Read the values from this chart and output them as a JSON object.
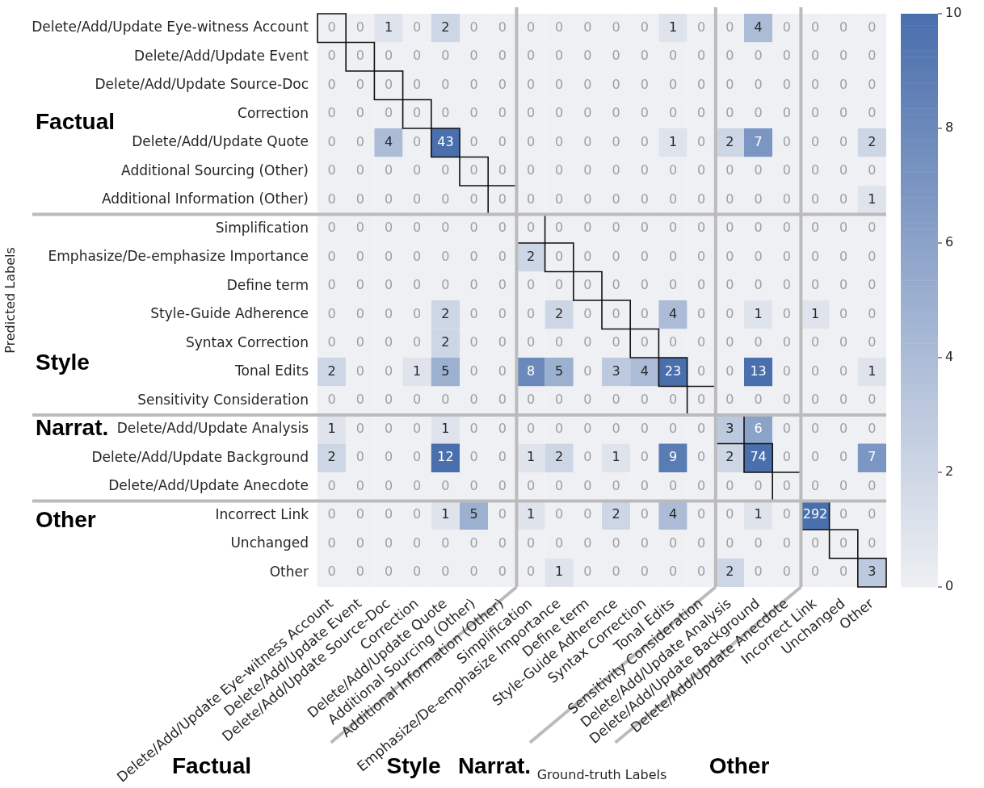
{
  "chart_data": {
    "type": "heatmap",
    "xlabel": "Ground-truth Labels",
    "ylabel": "Predicted Labels",
    "categories": [
      "Delete/Add/Update Eye-witness Account",
      "Delete/Add/Update Event",
      "Delete/Add/Update Source-Doc",
      "Correction",
      "Delete/Add/Update Quote",
      "Additional Sourcing (Other)",
      "Additional Information (Other)",
      "Simplification",
      "Emphasize/De-emphasize Importance",
      "Define term",
      "Style-Guide Adherence",
      "Syntax Correction",
      "Tonal Edits",
      "Sensitivity Consideration",
      "Delete/Add/Update Analysis",
      "Delete/Add/Update Background",
      "Delete/Add/Update Anecdote",
      "Incorrect Link",
      "Unchanged",
      "Other"
    ],
    "y_categories": [
      "Delete/Add/Update Eye-witness Account",
      "Delete/Add/Update Event",
      "Delete/Add/Update Source-Doc",
      "Correction",
      "Delete/Add/Update Quote",
      "Additional Sourcing (Other)",
      "Additional Information (Other)",
      "Simplification",
      "Emphasize/De-emphasize Importance",
      "Define term",
      "Style-Guide Adherence",
      "Syntax Correction",
      "Tonal Edits",
      "Sensitivity Consideration",
      "Delete/Add/Update Analysis",
      "Delete/Add/Update Background",
      "Delete/Add/Update Anecdote",
      "Incorrect Link",
      "Unchanged",
      "Other"
    ],
    "cells": [
      [
        0,
        0,
        1,
        0,
        2,
        0,
        0,
        0,
        0,
        0,
        0,
        0,
        1,
        0,
        0,
        4,
        0,
        0,
        0,
        0
      ],
      [
        0,
        0,
        0,
        0,
        0,
        0,
        0,
        0,
        0,
        0,
        0,
        0,
        0,
        0,
        0,
        0,
        0,
        0,
        0,
        0
      ],
      [
        0,
        0,
        0,
        0,
        0,
        0,
        0,
        0,
        0,
        0,
        0,
        0,
        0,
        0,
        0,
        0,
        0,
        0,
        0,
        0
      ],
      [
        0,
        0,
        0,
        0,
        0,
        0,
        0,
        0,
        0,
        0,
        0,
        0,
        0,
        0,
        0,
        0,
        0,
        0,
        0,
        0
      ],
      [
        0,
        0,
        4,
        0,
        43,
        0,
        0,
        0,
        0,
        0,
        0,
        0,
        1,
        0,
        2,
        7,
        0,
        0,
        0,
        2
      ],
      [
        0,
        0,
        0,
        0,
        0,
        0,
        0,
        0,
        0,
        0,
        0,
        0,
        0,
        0,
        0,
        0,
        0,
        0,
        0,
        0
      ],
      [
        0,
        0,
        0,
        0,
        0,
        0,
        0,
        0,
        0,
        0,
        0,
        0,
        0,
        0,
        0,
        0,
        0,
        0,
        0,
        1
      ],
      [
        0,
        0,
        0,
        0,
        0,
        0,
        0,
        0,
        0,
        0,
        0,
        0,
        0,
        0,
        0,
        0,
        0,
        0,
        0,
        0
      ],
      [
        0,
        0,
        0,
        0,
        0,
        0,
        0,
        2,
        0,
        0,
        0,
        0,
        0,
        0,
        0,
        0,
        0,
        0,
        0,
        0
      ],
      [
        0,
        0,
        0,
        0,
        0,
        0,
        0,
        0,
        0,
        0,
        0,
        0,
        0,
        0,
        0,
        0,
        0,
        0,
        0,
        0
      ],
      [
        0,
        0,
        0,
        0,
        2,
        0,
        0,
        0,
        2,
        0,
        0,
        0,
        4,
        0,
        0,
        1,
        0,
        1,
        0,
        0
      ],
      [
        0,
        0,
        0,
        0,
        2,
        0,
        0,
        0,
        0,
        0,
        0,
        0,
        0,
        0,
        0,
        0,
        0,
        0,
        0,
        0
      ],
      [
        2,
        0,
        0,
        1,
        5,
        0,
        0,
        8,
        5,
        0,
        3,
        4,
        23,
        0,
        0,
        13,
        0,
        0,
        0,
        1
      ],
      [
        0,
        0,
        0,
        0,
        0,
        0,
        0,
        0,
        0,
        0,
        0,
        0,
        0,
        0,
        0,
        0,
        0,
        0,
        0,
        0
      ],
      [
        1,
        0,
        0,
        0,
        1,
        0,
        0,
        0,
        0,
        0,
        0,
        0,
        0,
        0,
        3,
        6,
        0,
        0,
        0,
        0
      ],
      [
        2,
        0,
        0,
        0,
        12,
        0,
        0,
        1,
        2,
        0,
        1,
        0,
        9,
        0,
        2,
        74,
        0,
        0,
        0,
        7
      ],
      [
        0,
        0,
        0,
        0,
        0,
        0,
        0,
        0,
        0,
        0,
        0,
        0,
        0,
        0,
        0,
        0,
        0,
        0,
        0,
        0
      ],
      [
        0,
        0,
        0,
        0,
        1,
        5,
        0,
        1,
        0,
        0,
        2,
        0,
        4,
        0,
        0,
        1,
        0,
        292,
        0,
        0
      ],
      [
        0,
        0,
        0,
        0,
        0,
        0,
        0,
        0,
        0,
        0,
        0,
        0,
        0,
        0,
        0,
        0,
        0,
        0,
        0,
        0
      ],
      [
        0,
        0,
        0,
        0,
        0,
        0,
        0,
        0,
        1,
        0,
        0,
        0,
        0,
        0,
        2,
        0,
        0,
        0,
        0,
        3
      ]
    ],
    "clim": [
      0,
      10
    ],
    "cticks": [
      0,
      2,
      4,
      6,
      8,
      10
    ],
    "data_labels": true,
    "annotations": [
      "Factual",
      "Style",
      "Narrat.",
      "Other",
      "Factual",
      "Style",
      "Narrat.",
      "Other"
    ]
  }
}
